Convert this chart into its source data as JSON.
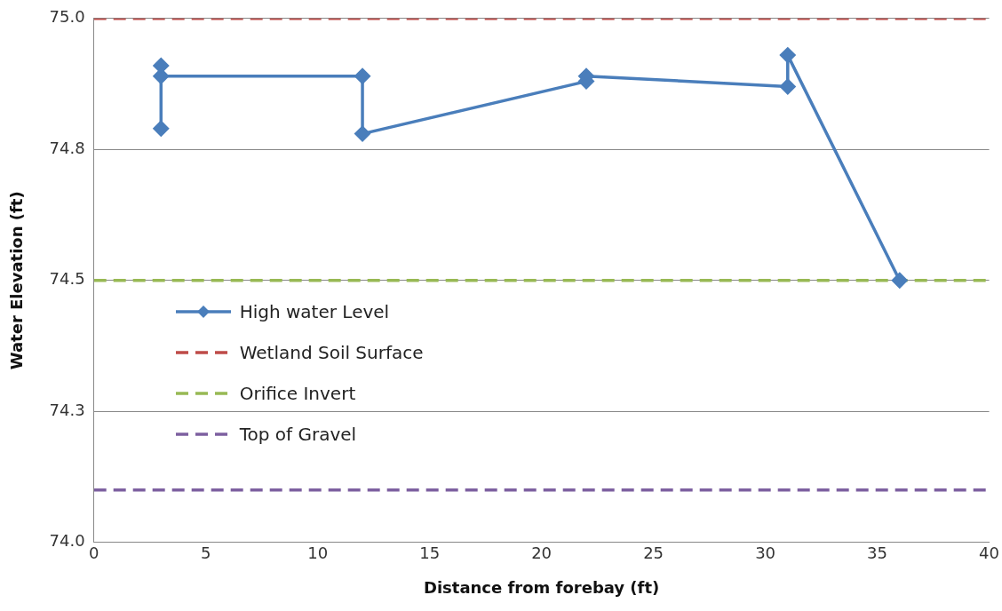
{
  "chart_data": {
    "type": "line",
    "xlabel": "Distance from forebay (ft)",
    "ylabel": "Water Elevation (ft)",
    "xlim": [
      0,
      40
    ],
    "xticks": [
      0,
      5,
      10,
      15,
      20,
      25,
      30,
      35,
      40
    ],
    "ylim": [
      74.0,
      75.0
    ],
    "yticks": [
      {
        "value": 74.0,
        "label": "74.0"
      },
      {
        "value": 74.25,
        "label": "74.3"
      },
      {
        "value": 74.5,
        "label": "74.5"
      },
      {
        "value": 74.75,
        "label": "74.8"
      },
      {
        "value": 75.0,
        "label": "75.0"
      }
    ],
    "grid": "y",
    "legend": "left",
    "series": [
      {
        "name": "High water Level",
        "color": "#4a7ebb",
        "marker": "diamond",
        "line_style": "solid",
        "x": [
          3,
          3,
          3,
          12,
          12,
          22,
          22,
          31,
          31,
          36
        ],
        "values": [
          74.91,
          74.79,
          74.89,
          74.89,
          74.78,
          74.88,
          74.89,
          74.87,
          74.93,
          74.5
        ]
      },
      {
        "name": "Wetland Soil Surface",
        "color": "#be4b48",
        "marker": "none",
        "line_style": "dashed",
        "x": [
          0,
          40
        ],
        "values": [
          75.0,
          75.0
        ]
      },
      {
        "name": "Orifice Invert",
        "color": "#98b954",
        "marker": "none",
        "line_style": "dashed",
        "x": [
          0,
          40
        ],
        "values": [
          74.5,
          74.5
        ]
      },
      {
        "name": "Top of Gravel",
        "color": "#7d60a0",
        "marker": "none",
        "line_style": "dashed",
        "x": [
          0,
          40
        ],
        "values": [
          74.1,
          74.1
        ]
      }
    ]
  }
}
